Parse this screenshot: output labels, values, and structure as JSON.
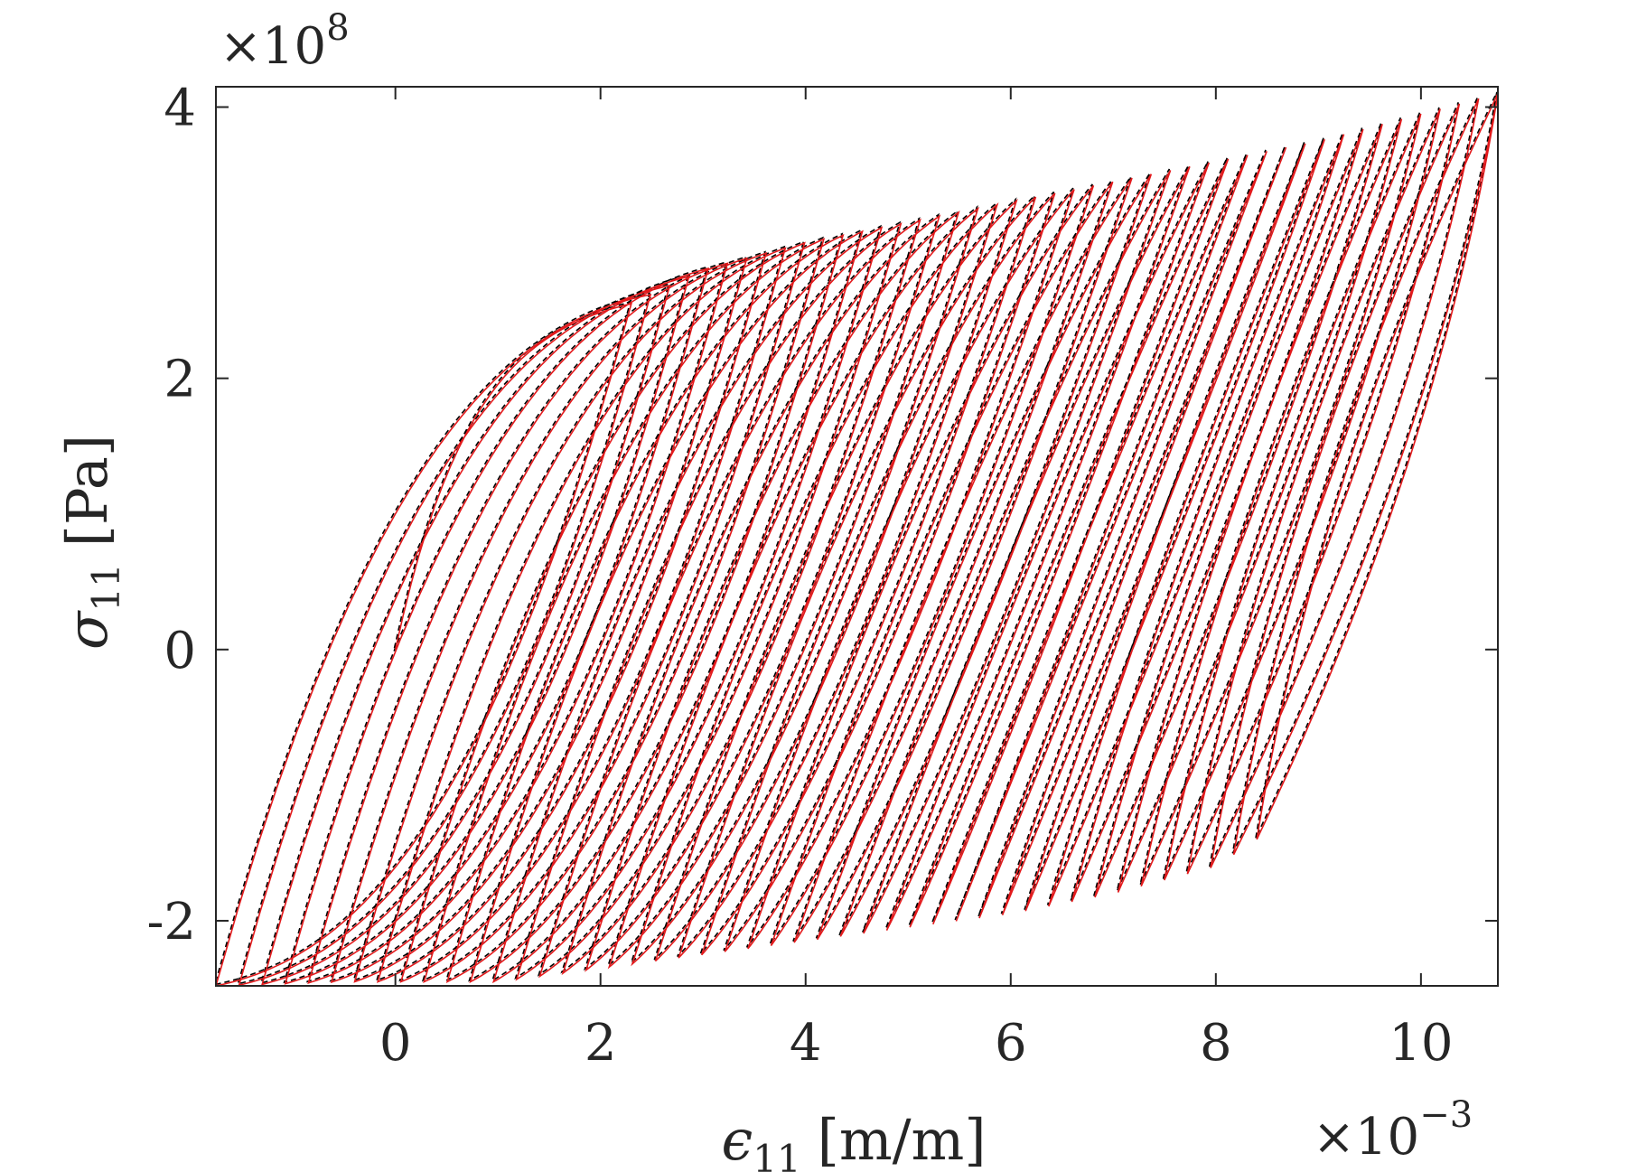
{
  "chart_data": {
    "type": "line",
    "title": "",
    "xlabel_symbol": "ϵ",
    "xlabel_sub": "11",
    "xlabel_unit": "[m/m]",
    "ylabel_symbol": "σ",
    "ylabel_sub": "11",
    "ylabel_unit": "[Pa]",
    "x_exponent_base": "×10",
    "x_exponent_power": "−3",
    "y_exponent_base": "×10",
    "y_exponent_power": "8",
    "xlim": [
      -1.75,
      10.75
    ],
    "ylim": [
      -2.48,
      4.15
    ],
    "xticks": [
      0,
      2,
      4,
      6,
      8,
      10
    ],
    "xtick_labels": [
      "0",
      "2",
      "4",
      "6",
      "8",
      "10"
    ],
    "yticks": [
      -2,
      0,
      2,
      4
    ],
    "ytick_labels": [
      "-2",
      "0",
      "2",
      "4"
    ],
    "grid": false,
    "legend": "none",
    "description_of_data": "Ratcheting stress-strain hysteresis loops: repeated cycles drifting to larger strain with rising peak stress.",
    "series": [
      {
        "style": "solid",
        "color": "#e31a1c"
      },
      {
        "style": "dashed",
        "color": "#000000"
      }
    ],
    "loop_envelope": {
      "cycles": 46,
      "start_strain": 0.0,
      "first_loop": {
        "min_strain": -1.75,
        "max_strain": 2.3,
        "min_stress": -2.48,
        "max_stress": 2.55
      },
      "last_loop": {
        "min_strain": 8.4,
        "max_strain": 10.75,
        "min_stress": -1.4,
        "max_stress": 4.1
      },
      "peak_stress_points": [
        [
          2.3,
          2.55
        ],
        [
          3.0,
          2.8
        ],
        [
          4.0,
          3.0
        ],
        [
          5.0,
          3.15
        ],
        [
          6.0,
          3.3
        ],
        [
          7.0,
          3.45
        ],
        [
          8.0,
          3.6
        ],
        [
          9.0,
          3.75
        ],
        [
          10.0,
          3.95
        ],
        [
          10.75,
          4.1
        ]
      ],
      "valley_stress_points": [
        [
          -1.75,
          -2.48
        ],
        [
          -0.5,
          -2.45
        ],
        [
          1.0,
          -2.45
        ],
        [
          2.0,
          -2.35
        ],
        [
          4.0,
          -2.15
        ],
        [
          6.0,
          -1.95
        ],
        [
          7.0,
          -1.8
        ],
        [
          8.0,
          -1.6
        ],
        [
          8.4,
          -1.4
        ]
      ]
    }
  }
}
